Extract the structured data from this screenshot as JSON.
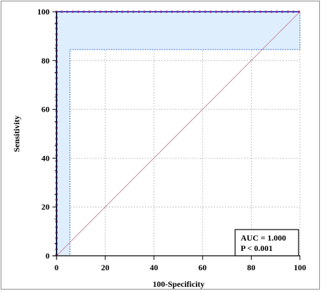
{
  "chart_data": {
    "type": "line",
    "xlabel": "100-Specificity",
    "ylabel": "Sensitivity",
    "xlim": [
      0,
      100
    ],
    "ylim": [
      0,
      100
    ],
    "xticks": [
      0,
      20,
      40,
      60,
      80,
      100
    ],
    "yticks": [
      0,
      20,
      40,
      60,
      80,
      100
    ],
    "grid": true,
    "series": [
      {
        "role": "roc_curve",
        "color": "#2f4fbf",
        "marker_color": "#8b2e8b",
        "x": [
          0,
          0,
          100
        ],
        "y": [
          0,
          100,
          100
        ]
      },
      {
        "role": "reference_line",
        "color": "#c48fa6",
        "x": [
          0,
          100
        ],
        "y": [
          0,
          100
        ]
      }
    ],
    "confidence_band": {
      "fill_color": "#dfeefc",
      "edge_color": "#3a6fcf",
      "upper": {
        "x": [
          0,
          0,
          100
        ],
        "y": [
          0,
          100,
          100
        ]
      },
      "lower": {
        "x": [
          0,
          5.5,
          5.5,
          100,
          100
        ],
        "y": [
          0,
          0,
          84.5,
          84.5,
          100
        ]
      }
    },
    "annotations": {
      "auc": "AUC = 1.000",
      "p": "P < 0.001",
      "placement": "bottom-right"
    }
  }
}
